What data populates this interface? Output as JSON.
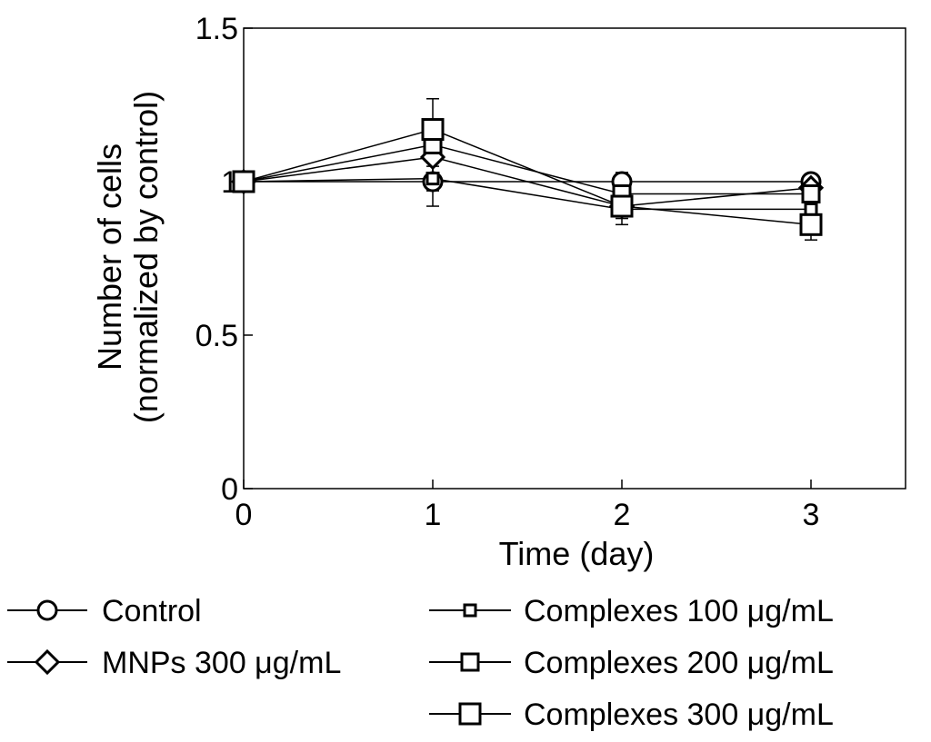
{
  "chart_data": {
    "type": "line",
    "title": "",
    "xlabel": "Time (day)",
    "ylabel_line1": "Number of cells",
    "ylabel_line2": "(normalized by control)",
    "xlim": [
      0,
      3.5
    ],
    "ylim": [
      0,
      1.5
    ],
    "x_ticks": [
      0,
      1,
      2,
      3
    ],
    "x_tick_labels": [
      "0",
      "1",
      "2",
      "3"
    ],
    "y_ticks": [
      0,
      0.5,
      1,
      1.5
    ],
    "y_tick_labels": [
      "0",
      "0.5",
      "1",
      "1.5"
    ],
    "grid": false,
    "legend_position": "bottom",
    "series": [
      {
        "name": "Control",
        "marker": "circle",
        "x": [
          0,
          1,
          2,
          3
        ],
        "values": [
          1.0,
          1.0,
          1.0,
          1.0
        ],
        "errors": [
          0,
          0.08,
          0.03,
          0.01
        ]
      },
      {
        "name": "MNPs 300 μg/mL",
        "marker": "diamond",
        "x": [
          0,
          1,
          2,
          3
        ],
        "values": [
          1.0,
          1.08,
          0.92,
          0.98
        ],
        "errors": [
          0,
          0.05,
          0.03,
          0.02
        ]
      },
      {
        "name": "Complexes 100 μg/mL",
        "marker": "square-small",
        "x": [
          0,
          1,
          2,
          3
        ],
        "values": [
          1.0,
          1.01,
          0.91,
          0.91
        ],
        "errors": [
          0,
          0.04,
          0.03,
          0.03
        ]
      },
      {
        "name": "Complexes 200 μg/mL",
        "marker": "square-medium",
        "x": [
          0,
          1,
          2,
          3
        ],
        "values": [
          1.0,
          1.12,
          0.96,
          0.96
        ],
        "errors": [
          0,
          0.06,
          0.04,
          0.03
        ]
      },
      {
        "name": "Complexes 300 μg/mL",
        "marker": "square-large",
        "x": [
          0,
          1,
          2,
          3
        ],
        "values": [
          1.0,
          1.17,
          0.92,
          0.86
        ],
        "errors": [
          0,
          0.1,
          0.06,
          0.05
        ]
      }
    ]
  }
}
